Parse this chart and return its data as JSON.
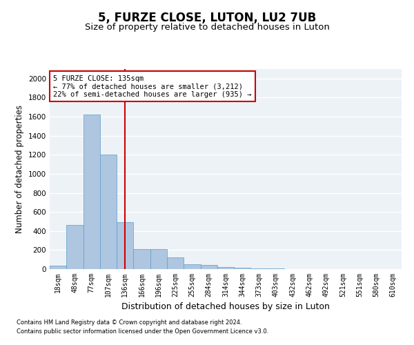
{
  "title": "5, FURZE CLOSE, LUTON, LU2 7UB",
  "subtitle": "Size of property relative to detached houses in Luton",
  "xlabel": "Distribution of detached houses by size in Luton",
  "ylabel": "Number of detached properties",
  "categories": [
    "18sqm",
    "48sqm",
    "77sqm",
    "107sqm",
    "136sqm",
    "166sqm",
    "196sqm",
    "225sqm",
    "255sqm",
    "284sqm",
    "314sqm",
    "344sqm",
    "373sqm",
    "403sqm",
    "432sqm",
    "462sqm",
    "492sqm",
    "521sqm",
    "551sqm",
    "580sqm",
    "610sqm"
  ],
  "values": [
    35,
    460,
    1620,
    1200,
    490,
    210,
    210,
    125,
    48,
    40,
    23,
    18,
    10,
    5,
    3,
    2,
    1,
    1,
    0,
    0,
    0
  ],
  "bar_color": "#aec6e0",
  "bar_edge_color": "#5a9ec8",
  "vline_color": "#cc0000",
  "vline_x": 4.5,
  "annotation_text": "5 FURZE CLOSE: 135sqm\n← 77% of detached houses are smaller (3,212)\n22% of semi-detached houses are larger (935) →",
  "annotation_box_color": "#ffffff",
  "annotation_box_edge": "#cc0000",
  "ylim": [
    0,
    2100
  ],
  "yticks": [
    0,
    200,
    400,
    600,
    800,
    1000,
    1200,
    1400,
    1600,
    1800,
    2000
  ],
  "background_color": "#edf2f7",
  "grid_color": "#ffffff",
  "footer1": "Contains HM Land Registry data © Crown copyright and database right 2024.",
  "footer2": "Contains public sector information licensed under the Open Government Licence v3.0.",
  "title_fontsize": 12,
  "subtitle_fontsize": 9.5,
  "tick_fontsize": 7,
  "ylabel_fontsize": 8.5,
  "xlabel_fontsize": 9,
  "annotation_fontsize": 7.5,
  "footer_fontsize": 6
}
